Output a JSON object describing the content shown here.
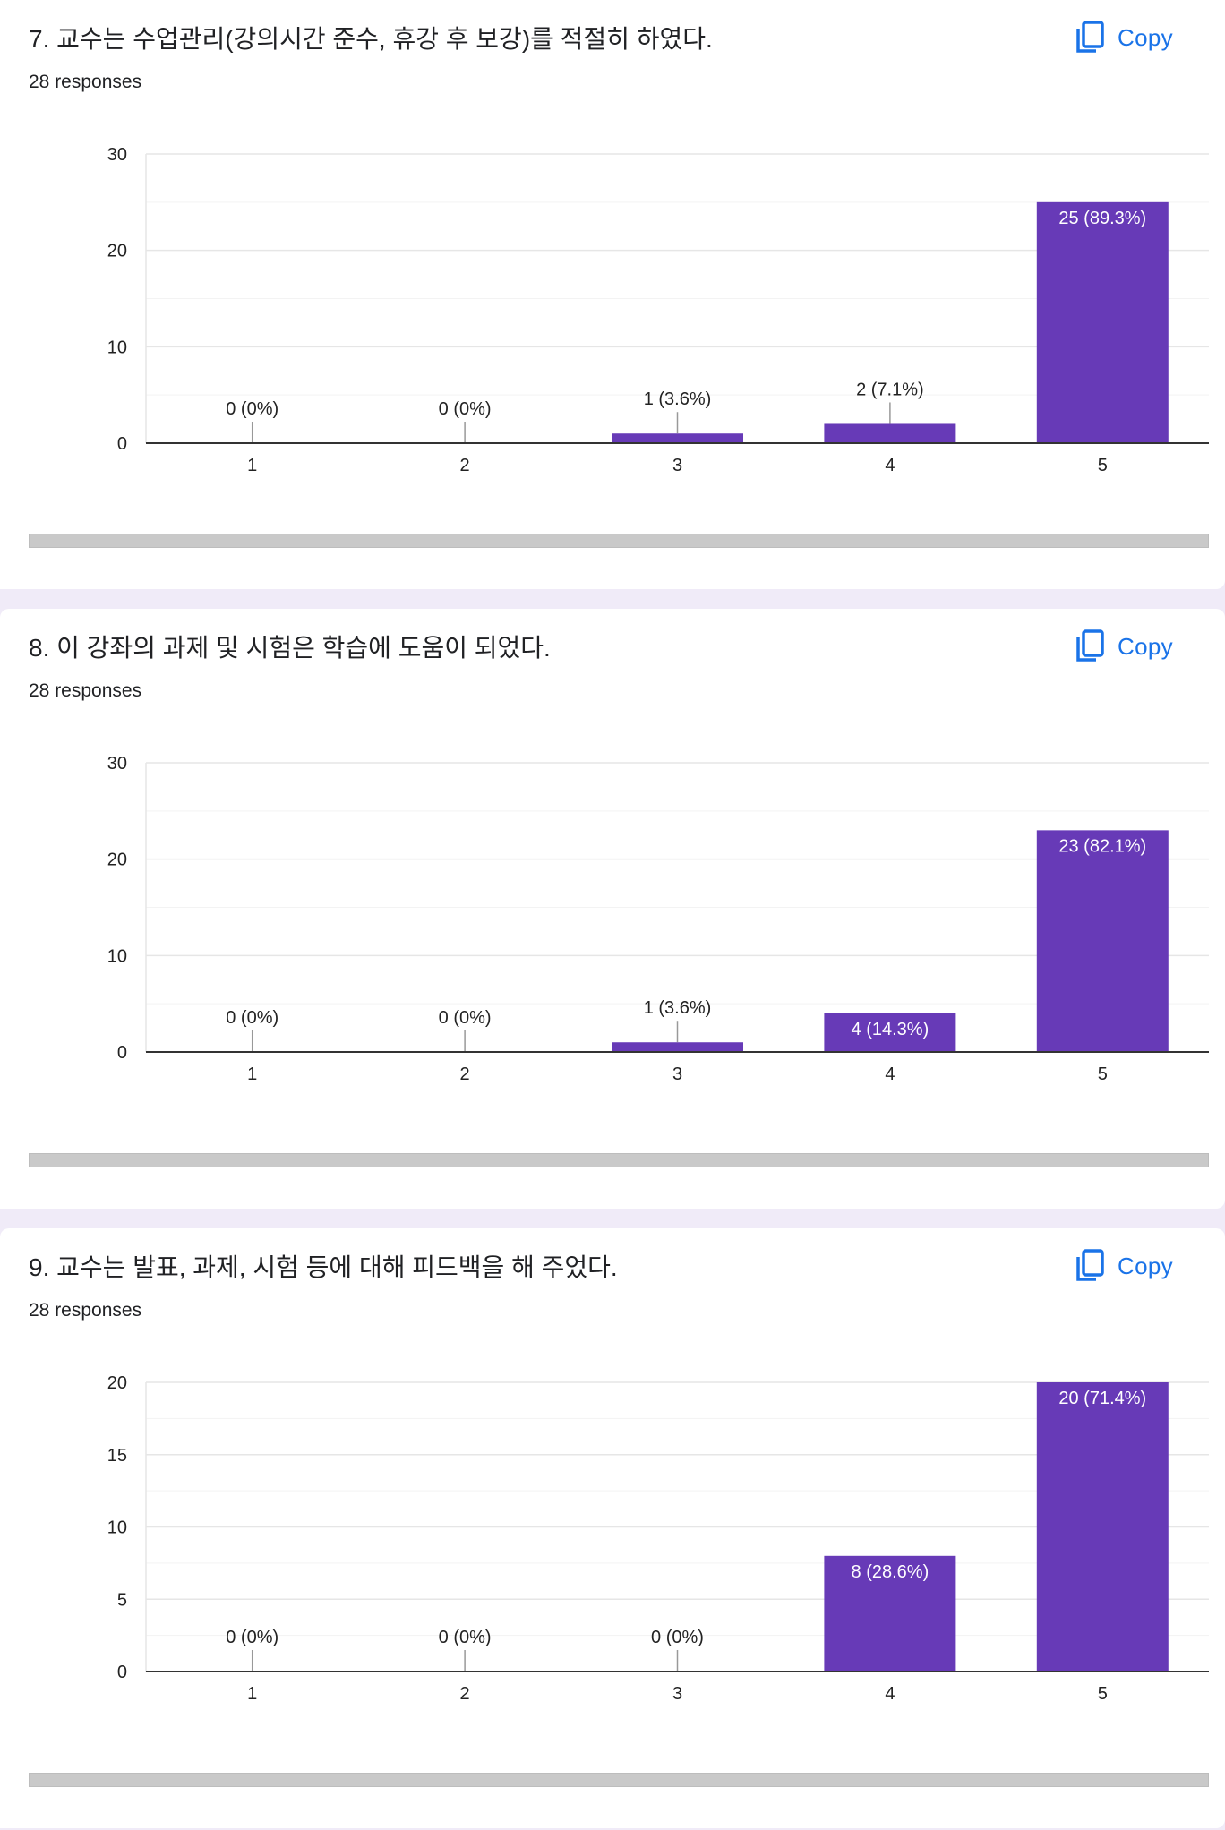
{
  "colors": {
    "bar": "#673ab7",
    "accent": "#1a73e8"
  },
  "copy_label": "Copy",
  "copy_icon": "copy-icon",
  "questions": [
    {
      "title": "7. 교수는 수업관리(강의시간 준수, 휴강 후 보강)를 적절히 하였다.",
      "responses": "28 responses"
    },
    {
      "title": "8. 이 강좌의 과제 및 시험은 학습에 도움이 되었다.",
      "responses": "28 responses"
    },
    {
      "title": "9. 교수는 발표, 과제, 시험 등에 대해 피드백을 해 주었다.",
      "responses": "28 responses"
    }
  ],
  "chart_data": [
    {
      "type": "bar",
      "categories": [
        "1",
        "2",
        "3",
        "4",
        "5"
      ],
      "values": [
        0,
        0,
        1,
        2,
        25
      ],
      "data_labels": [
        "0 (0%)",
        "0 (0%)",
        "1 (3.6%)",
        "2 (7.1%)",
        "25 (89.3%)"
      ],
      "ylim": [
        0,
        30
      ],
      "yticks": [
        0,
        10,
        20,
        30
      ],
      "grid": true
    },
    {
      "type": "bar",
      "categories": [
        "1",
        "2",
        "3",
        "4",
        "5"
      ],
      "values": [
        0,
        0,
        1,
        4,
        23
      ],
      "data_labels": [
        "0 (0%)",
        "0 (0%)",
        "1 (3.6%)",
        "4 (14.3%)",
        "23 (82.1%)"
      ],
      "ylim": [
        0,
        30
      ],
      "yticks": [
        0,
        10,
        20,
        30
      ],
      "grid": true
    },
    {
      "type": "bar",
      "categories": [
        "1",
        "2",
        "3",
        "4",
        "5"
      ],
      "values": [
        0,
        0,
        0,
        8,
        20
      ],
      "data_labels": [
        "0 (0%)",
        "0 (0%)",
        "0 (0%)",
        "8 (28.6%)",
        "20 (71.4%)"
      ],
      "ylim": [
        0,
        20
      ],
      "yticks": [
        0,
        5,
        10,
        15,
        20
      ],
      "grid": true
    }
  ]
}
